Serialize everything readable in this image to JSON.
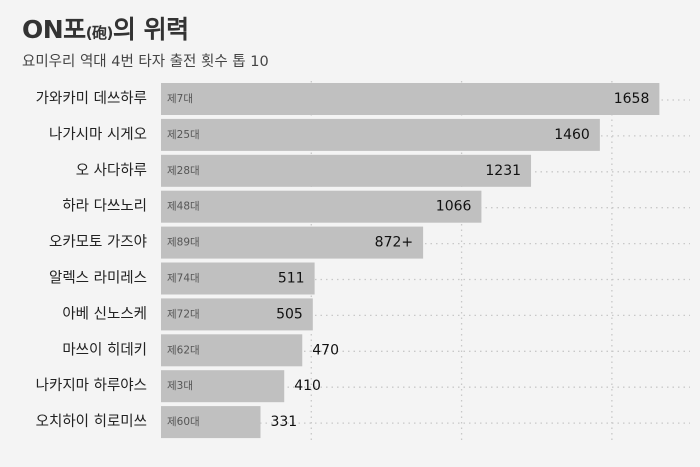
{
  "header": {
    "title_main": "ON포",
    "title_paren": "(砲)",
    "title_end": "의 위력",
    "subtitle": "요미우리 역대 4번 타자 출전 횟수 톱 10"
  },
  "chart_data": {
    "type": "bar",
    "orientation": "horizontal",
    "title": "ON포(砲)의 위력",
    "subtitle": "요미우리 역대 4번 타자 출전 횟수 톱 10",
    "categories": [
      "가와카미 데쓰하루",
      "나가시마 시게오",
      "오 사다하루",
      "하라 다쓰노리",
      "오카모토 가즈야",
      "알렉스 라미레스",
      "아베 신노스케",
      "마쓰이 히데키",
      "나카지마 하루야스",
      "오치하이 히로미쓰"
    ],
    "editions": [
      "제7대",
      "제25대",
      "제28대",
      "제48대",
      "제89대",
      "제74대",
      "제72대",
      "제62대",
      "제3대",
      "제60대"
    ],
    "values": [
      1658,
      1460,
      1231,
      1066,
      872,
      511,
      505,
      470,
      410,
      331
    ],
    "value_labels": [
      "1658",
      "1460",
      "1231",
      "1066",
      "872+",
      "511",
      "505",
      "470",
      "410",
      "331"
    ],
    "xlim": [
      0,
      1700
    ],
    "grid": true,
    "bar_color": "#c0c0c0",
    "background_color": "#f4f4f4"
  }
}
